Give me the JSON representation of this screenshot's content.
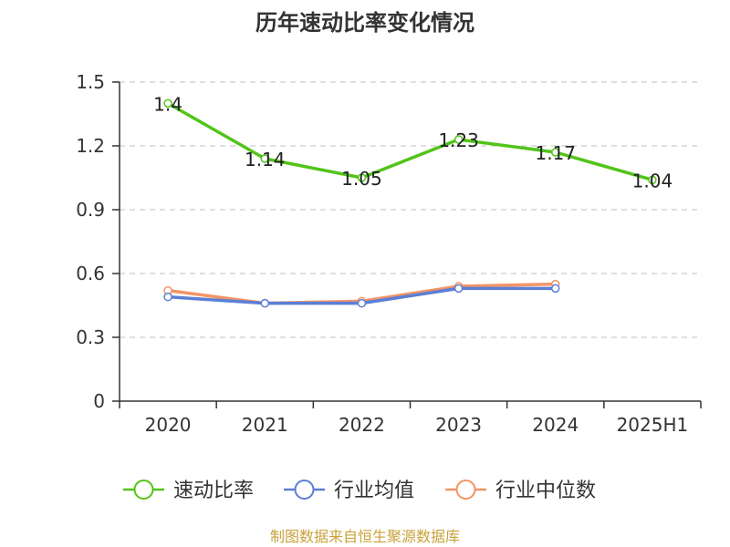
{
  "chart_data": {
    "type": "line",
    "title": "历年速动比率变化情况",
    "categories": [
      "2020",
      "2021",
      "2022",
      "2023",
      "2024",
      "2025H1"
    ],
    "ylim": [
      0,
      1.5
    ],
    "yticks": [
      "0",
      "0.3",
      "0.6",
      "0.9",
      "1.2",
      "1.5"
    ],
    "grid": true,
    "legend_position": "bottom",
    "series": [
      {
        "name": "速动比率",
        "color": "#52c41a",
        "values": [
          1.4,
          1.14,
          1.05,
          1.23,
          1.17,
          1.04
        ],
        "labels": [
          "1.4",
          "1.14",
          "1.05",
          "1.23",
          "1.17",
          "1.04"
        ]
      },
      {
        "name": "行业均值",
        "color": "#5b7fd6",
        "values": [
          0.49,
          0.46,
          0.46,
          0.53,
          0.53,
          null
        ]
      },
      {
        "name": "行业中位数",
        "color": "#f39466",
        "values": [
          0.52,
          0.46,
          0.47,
          0.54,
          0.55,
          null
        ]
      }
    ]
  },
  "source_text": "制图数据来自恒生聚源数据库",
  "source_color": "#c8a23a"
}
